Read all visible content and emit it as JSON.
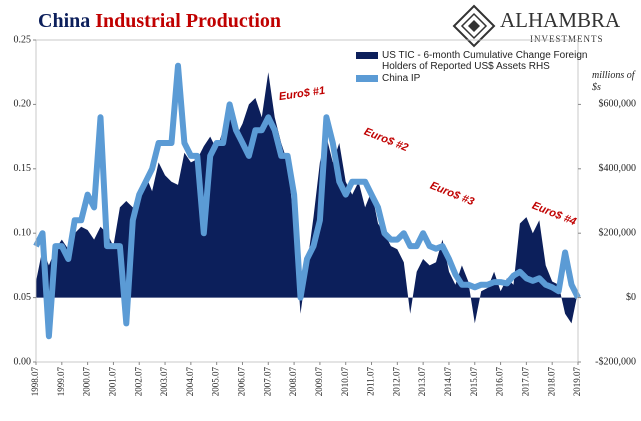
{
  "chart_data": {
    "type": "dual_axis_area_line",
    "title": {
      "lead": "China",
      "rest": "Industrial Production"
    },
    "brand": {
      "name": "ALHAMBRA",
      "tagline": "INVESTMENTS"
    },
    "y2_unit_label": "millions of $s",
    "annotations": [
      "Euro$ #1",
      "Euro$ #2",
      "Euro$ #3",
      "Euro$ #4"
    ],
    "xlim": [
      1998.5,
      2019.5
    ],
    "xticks": [
      {
        "value": 1998.5,
        "label": "1998.07"
      },
      {
        "value": 1999.5,
        "label": "1999.07"
      },
      {
        "value": 2000.5,
        "label": "2000.07"
      },
      {
        "value": 2001.5,
        "label": "2001.07"
      },
      {
        "value": 2002.5,
        "label": "2002.07"
      },
      {
        "value": 2003.5,
        "label": "2003.07"
      },
      {
        "value": 2004.5,
        "label": "2004.07"
      },
      {
        "value": 2005.5,
        "label": "2005.07"
      },
      {
        "value": 2006.5,
        "label": "2006.07"
      },
      {
        "value": 2007.5,
        "label": "2007.07"
      },
      {
        "value": 2008.5,
        "label": "2008.07"
      },
      {
        "value": 2009.5,
        "label": "2009.07"
      },
      {
        "value": 2010.5,
        "label": "2010.07"
      },
      {
        "value": 2011.5,
        "label": "2011.07"
      },
      {
        "value": 2012.5,
        "label": "2012.07"
      },
      {
        "value": 2013.5,
        "label": "2013.07"
      },
      {
        "value": 2014.5,
        "label": "2014.07"
      },
      {
        "value": 2015.5,
        "label": "2015.07"
      },
      {
        "value": 2016.5,
        "label": "2016.07"
      },
      {
        "value": 2017.5,
        "label": "2017.07"
      },
      {
        "value": 2018.5,
        "label": "2018.07"
      },
      {
        "value": 2019.5,
        "label": "2019.07"
      }
    ],
    "ylim": [
      0,
      0.25
    ],
    "yticks": [
      {
        "value": 0,
        "label": "0.00"
      },
      {
        "value": 0.05,
        "label": "0.05"
      },
      {
        "value": 0.1,
        "label": "0.10"
      },
      {
        "value": 0.15,
        "label": "0.15"
      },
      {
        "value": 0.2,
        "label": "0.20"
      },
      {
        "value": 0.25,
        "label": "0.25"
      }
    ],
    "y2lim": [
      -200000,
      800000
    ],
    "y2ticks": [
      {
        "value": -200000,
        "label": "-$200,000"
      },
      {
        "value": 0,
        "label": "$0"
      },
      {
        "value": 200000,
        "label": "$200,000"
      },
      {
        "value": 400000,
        "label": "$400,000"
      },
      {
        "value": 600000,
        "label": "$600,000"
      }
    ],
    "x": [
      1998.5,
      1998.75,
      1999,
      1999.25,
      1999.5,
      1999.75,
      2000,
      2000.25,
      2000.5,
      2000.75,
      2001,
      2001.25,
      2001.5,
      2001.75,
      2002,
      2002.25,
      2002.5,
      2002.75,
      2003,
      2003.25,
      2003.5,
      2003.75,
      2004,
      2004.25,
      2004.5,
      2004.75,
      2005,
      2005.25,
      2005.5,
      2005.75,
      2006,
      2006.25,
      2006.5,
      2006.75,
      2007,
      2007.25,
      2007.5,
      2007.75,
      2008,
      2008.25,
      2008.5,
      2008.75,
      2009,
      2009.25,
      2009.5,
      2009.75,
      2010,
      2010.25,
      2010.5,
      2010.75,
      2011,
      2011.25,
      2011.5,
      2011.75,
      2012,
      2012.25,
      2012.5,
      2012.75,
      2013,
      2013.25,
      2013.5,
      2013.75,
      2014,
      2014.25,
      2014.5,
      2014.75,
      2015,
      2015.25,
      2015.5,
      2015.75,
      2016,
      2016.25,
      2016.5,
      2016.75,
      2017,
      2017.25,
      2017.5,
      2017.75,
      2018,
      2018.25,
      2018.5,
      2018.75,
      2019,
      2019.25,
      2019.5
    ],
    "series": [
      {
        "name": "US TIC - 6-month Cumulative Change Foreign Holders of Reported US$ Assets RHS",
        "color": "#0c1f5b",
        "axis": "y2",
        "kind": "area",
        "values": [
          50000,
          150000,
          100000,
          150000,
          180000,
          150000,
          200000,
          220000,
          210000,
          180000,
          220000,
          200000,
          160000,
          280000,
          300000,
          280000,
          290000,
          380000,
          330000,
          420000,
          380000,
          360000,
          350000,
          450000,
          420000,
          430000,
          470000,
          500000,
          460000,
          520000,
          560000,
          500000,
          540000,
          600000,
          620000,
          560000,
          700000,
          560000,
          480000,
          420000,
          230000,
          -50000,
          100000,
          250000,
          420000,
          500000,
          420000,
          480000,
          360000,
          320000,
          360000,
          280000,
          330000,
          230000,
          200000,
          160000,
          150000,
          110000,
          -50000,
          80000,
          120000,
          100000,
          110000,
          180000,
          80000,
          40000,
          100000,
          50000,
          -80000,
          20000,
          30000,
          80000,
          20000,
          60000,
          40000,
          230000,
          250000,
          200000,
          240000,
          100000,
          50000,
          40000,
          -50000,
          -80000,
          20000
        ]
      },
      {
        "name": "China IP",
        "color": "#5b9bd5",
        "axis": "y",
        "kind": "line",
        "values": [
          0.09,
          0.1,
          0.02,
          0.09,
          0.09,
          0.08,
          0.11,
          0.11,
          0.13,
          0.12,
          0.19,
          0.09,
          0.09,
          0.09,
          0.03,
          0.11,
          0.13,
          0.14,
          0.15,
          0.17,
          0.17,
          0.17,
          0.23,
          0.17,
          0.16,
          0.16,
          0.1,
          0.16,
          0.17,
          0.17,
          0.2,
          0.18,
          0.17,
          0.16,
          0.18,
          0.18,
          0.19,
          0.18,
          0.16,
          0.16,
          0.13,
          0.05,
          0.08,
          0.09,
          0.11,
          0.19,
          0.17,
          0.14,
          0.13,
          0.14,
          0.14,
          0.14,
          0.13,
          0.12,
          0.1,
          0.095,
          0.095,
          0.1,
          0.09,
          0.09,
          0.1,
          0.09,
          0.088,
          0.09,
          0.08,
          0.068,
          0.06,
          0.06,
          0.058,
          0.06,
          0.06,
          0.062,
          0.062,
          0.061,
          0.067,
          0.07,
          0.065,
          0.063,
          0.065,
          0.06,
          0.058,
          0.055,
          0.085,
          0.06,
          0.05
        ]
      }
    ]
  }
}
